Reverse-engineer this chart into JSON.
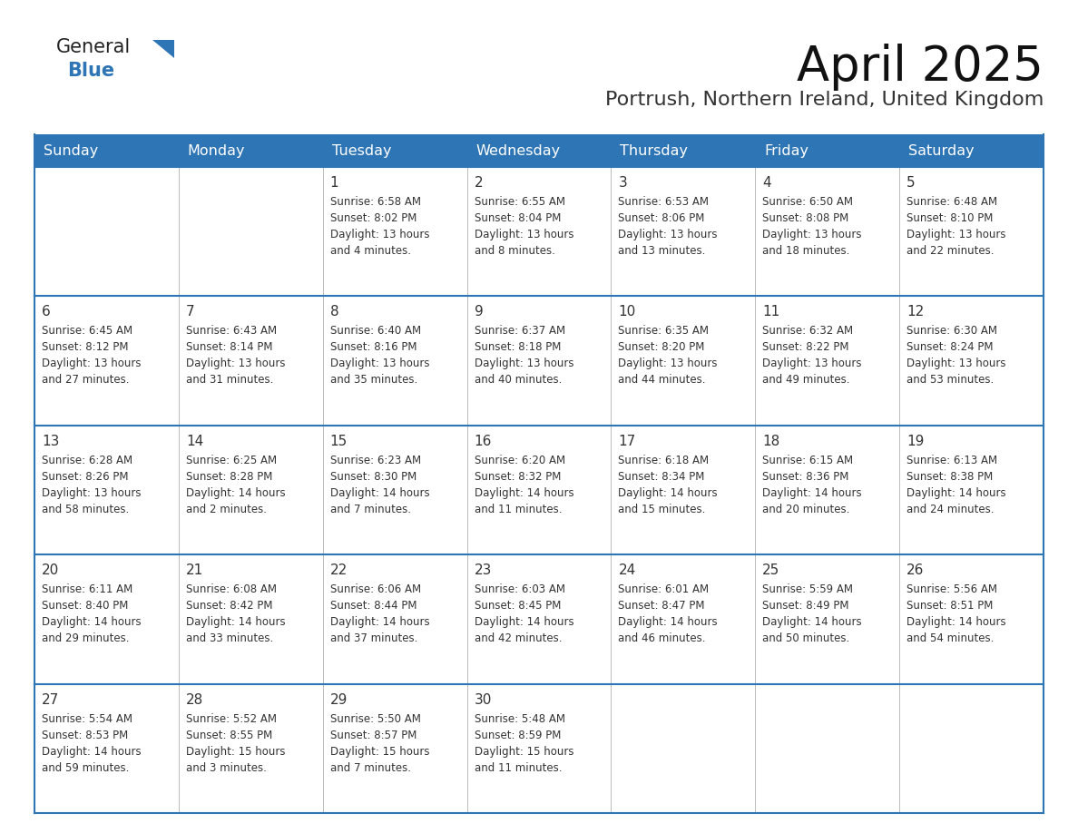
{
  "title": "April 2025",
  "subtitle": "Portrush, Northern Ireland, United Kingdom",
  "header_bg": "#2e75b6",
  "header_text": "#ffffff",
  "border_color": "#2e75b6",
  "text_color": "#333333",
  "days_of_week": [
    "Sunday",
    "Monday",
    "Tuesday",
    "Wednesday",
    "Thursday",
    "Friday",
    "Saturday"
  ],
  "weeks": [
    [
      {
        "day": "",
        "sunrise": "",
        "sunset": "",
        "daylight_line1": "",
        "daylight_line2": ""
      },
      {
        "day": "",
        "sunrise": "",
        "sunset": "",
        "daylight_line1": "",
        "daylight_line2": ""
      },
      {
        "day": "1",
        "sunrise": "6:58 AM",
        "sunset": "8:02 PM",
        "daylight_line1": "13 hours",
        "daylight_line2": "and 4 minutes."
      },
      {
        "day": "2",
        "sunrise": "6:55 AM",
        "sunset": "8:04 PM",
        "daylight_line1": "13 hours",
        "daylight_line2": "and 8 minutes."
      },
      {
        "day": "3",
        "sunrise": "6:53 AM",
        "sunset": "8:06 PM",
        "daylight_line1": "13 hours",
        "daylight_line2": "and 13 minutes."
      },
      {
        "day": "4",
        "sunrise": "6:50 AM",
        "sunset": "8:08 PM",
        "daylight_line1": "13 hours",
        "daylight_line2": "and 18 minutes."
      },
      {
        "day": "5",
        "sunrise": "6:48 AM",
        "sunset": "8:10 PM",
        "daylight_line1": "13 hours",
        "daylight_line2": "and 22 minutes."
      }
    ],
    [
      {
        "day": "6",
        "sunrise": "6:45 AM",
        "sunset": "8:12 PM",
        "daylight_line1": "13 hours",
        "daylight_line2": "and 27 minutes."
      },
      {
        "day": "7",
        "sunrise": "6:43 AM",
        "sunset": "8:14 PM",
        "daylight_line1": "13 hours",
        "daylight_line2": "and 31 minutes."
      },
      {
        "day": "8",
        "sunrise": "6:40 AM",
        "sunset": "8:16 PM",
        "daylight_line1": "13 hours",
        "daylight_line2": "and 35 minutes."
      },
      {
        "day": "9",
        "sunrise": "6:37 AM",
        "sunset": "8:18 PM",
        "daylight_line1": "13 hours",
        "daylight_line2": "and 40 minutes."
      },
      {
        "day": "10",
        "sunrise": "6:35 AM",
        "sunset": "8:20 PM",
        "daylight_line1": "13 hours",
        "daylight_line2": "and 44 minutes."
      },
      {
        "day": "11",
        "sunrise": "6:32 AM",
        "sunset": "8:22 PM",
        "daylight_line1": "13 hours",
        "daylight_line2": "and 49 minutes."
      },
      {
        "day": "12",
        "sunrise": "6:30 AM",
        "sunset": "8:24 PM",
        "daylight_line1": "13 hours",
        "daylight_line2": "and 53 minutes."
      }
    ],
    [
      {
        "day": "13",
        "sunrise": "6:28 AM",
        "sunset": "8:26 PM",
        "daylight_line1": "13 hours",
        "daylight_line2": "and 58 minutes."
      },
      {
        "day": "14",
        "sunrise": "6:25 AM",
        "sunset": "8:28 PM",
        "daylight_line1": "14 hours",
        "daylight_line2": "and 2 minutes."
      },
      {
        "day": "15",
        "sunrise": "6:23 AM",
        "sunset": "8:30 PM",
        "daylight_line1": "14 hours",
        "daylight_line2": "and 7 minutes."
      },
      {
        "day": "16",
        "sunrise": "6:20 AM",
        "sunset": "8:32 PM",
        "daylight_line1": "14 hours",
        "daylight_line2": "and 11 minutes."
      },
      {
        "day": "17",
        "sunrise": "6:18 AM",
        "sunset": "8:34 PM",
        "daylight_line1": "14 hours",
        "daylight_line2": "and 15 minutes."
      },
      {
        "day": "18",
        "sunrise": "6:15 AM",
        "sunset": "8:36 PM",
        "daylight_line1": "14 hours",
        "daylight_line2": "and 20 minutes."
      },
      {
        "day": "19",
        "sunrise": "6:13 AM",
        "sunset": "8:38 PM",
        "daylight_line1": "14 hours",
        "daylight_line2": "and 24 minutes."
      }
    ],
    [
      {
        "day": "20",
        "sunrise": "6:11 AM",
        "sunset": "8:40 PM",
        "daylight_line1": "14 hours",
        "daylight_line2": "and 29 minutes."
      },
      {
        "day": "21",
        "sunrise": "6:08 AM",
        "sunset": "8:42 PM",
        "daylight_line1": "14 hours",
        "daylight_line2": "and 33 minutes."
      },
      {
        "day": "22",
        "sunrise": "6:06 AM",
        "sunset": "8:44 PM",
        "daylight_line1": "14 hours",
        "daylight_line2": "and 37 minutes."
      },
      {
        "day": "23",
        "sunrise": "6:03 AM",
        "sunset": "8:45 PM",
        "daylight_line1": "14 hours",
        "daylight_line2": "and 42 minutes."
      },
      {
        "day": "24",
        "sunrise": "6:01 AM",
        "sunset": "8:47 PM",
        "daylight_line1": "14 hours",
        "daylight_line2": "and 46 minutes."
      },
      {
        "day": "25",
        "sunrise": "5:59 AM",
        "sunset": "8:49 PM",
        "daylight_line1": "14 hours",
        "daylight_line2": "and 50 minutes."
      },
      {
        "day": "26",
        "sunrise": "5:56 AM",
        "sunset": "8:51 PM",
        "daylight_line1": "14 hours",
        "daylight_line2": "and 54 minutes."
      }
    ],
    [
      {
        "day": "27",
        "sunrise": "5:54 AM",
        "sunset": "8:53 PM",
        "daylight_line1": "14 hours",
        "daylight_line2": "and 59 minutes."
      },
      {
        "day": "28",
        "sunrise": "5:52 AM",
        "sunset": "8:55 PM",
        "daylight_line1": "15 hours",
        "daylight_line2": "and 3 minutes."
      },
      {
        "day": "29",
        "sunrise": "5:50 AM",
        "sunset": "8:57 PM",
        "daylight_line1": "15 hours",
        "daylight_line2": "and 7 minutes."
      },
      {
        "day": "30",
        "sunrise": "5:48 AM",
        "sunset": "8:59 PM",
        "daylight_line1": "15 hours",
        "daylight_line2": "and 11 minutes."
      },
      {
        "day": "",
        "sunrise": "",
        "sunset": "",
        "daylight_line1": "",
        "daylight_line2": ""
      },
      {
        "day": "",
        "sunrise": "",
        "sunset": "",
        "daylight_line1": "",
        "daylight_line2": ""
      },
      {
        "day": "",
        "sunrise": "",
        "sunset": "",
        "daylight_line1": "",
        "daylight_line2": ""
      }
    ]
  ]
}
